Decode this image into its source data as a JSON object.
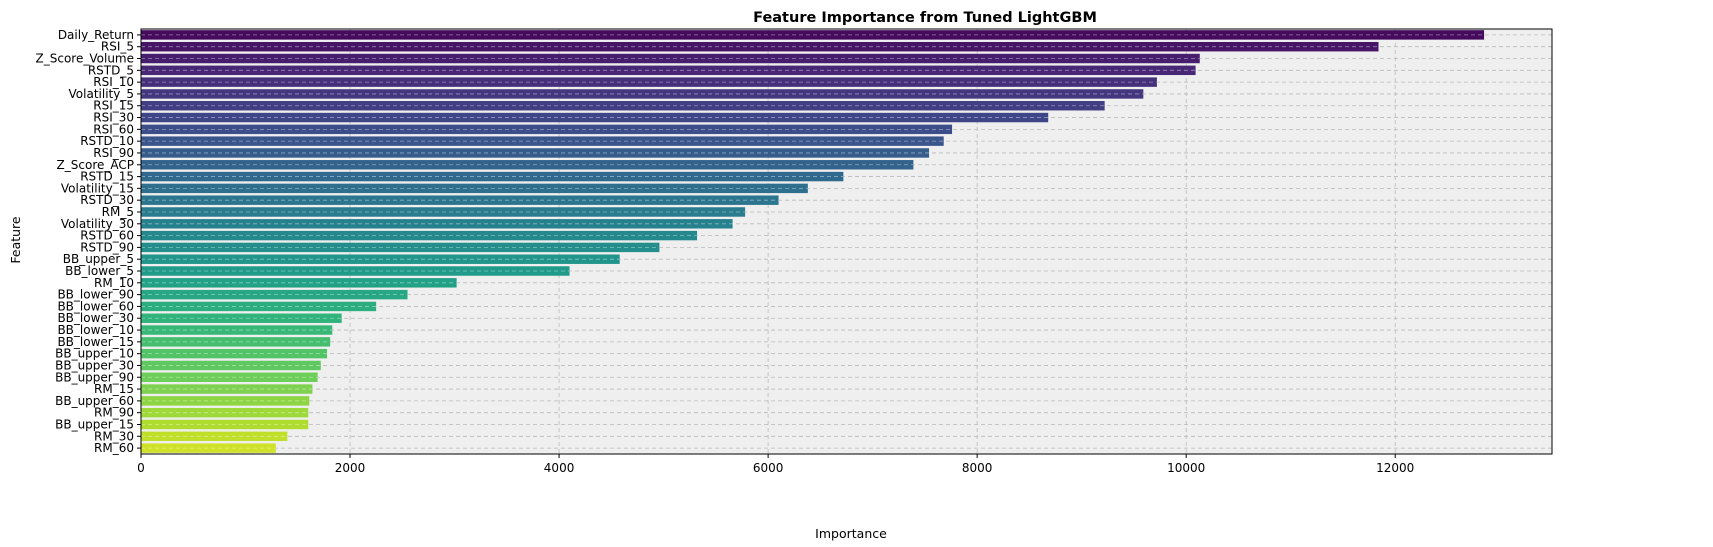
{
  "chart_data": {
    "type": "bar",
    "orientation": "horizontal",
    "title": "Feature Importance from Tuned LightGBM",
    "xlabel": "Importance",
    "ylabel": "Feature",
    "xlim": [
      0,
      13500
    ],
    "xticks": [
      0,
      2000,
      4000,
      6000,
      8000,
      10000,
      12000
    ],
    "grid": true,
    "colormap": "viridis",
    "background_color": "#efefef",
    "categories": [
      "Daily_Return",
      "RSI_5",
      "Z_Score_Volume",
      "RSTD_5",
      "RSI_10",
      "Volatility_5",
      "RSI_15",
      "RSI_30",
      "RSI_60",
      "RSTD_10",
      "RSI_90",
      "Z_Score_ACP",
      "RSTD_15",
      "Volatility_15",
      "RSTD_30",
      "RM_5",
      "Volatility_30",
      "RSTD_60",
      "RSTD_90",
      "BB_upper_5",
      "BB_lower_5",
      "RM_10",
      "BB_lower_90",
      "BB_lower_60",
      "BB_lower_30",
      "BB_lower_10",
      "BB_lower_15",
      "BB_upper_10",
      "BB_upper_30",
      "BB_upper_90",
      "RM_15",
      "BB_upper_60",
      "RM_90",
      "BB_upper_15",
      "RM_30",
      "RM_60"
    ],
    "values": [
      12850,
      11840,
      10130,
      10090,
      9720,
      9590,
      9220,
      8680,
      7760,
      7680,
      7540,
      7390,
      6720,
      6380,
      6100,
      5780,
      5660,
      5320,
      4960,
      4580,
      4100,
      3020,
      2550,
      2250,
      1920,
      1830,
      1810,
      1780,
      1720,
      1690,
      1640,
      1610,
      1600,
      1600,
      1400,
      1290
    ]
  }
}
